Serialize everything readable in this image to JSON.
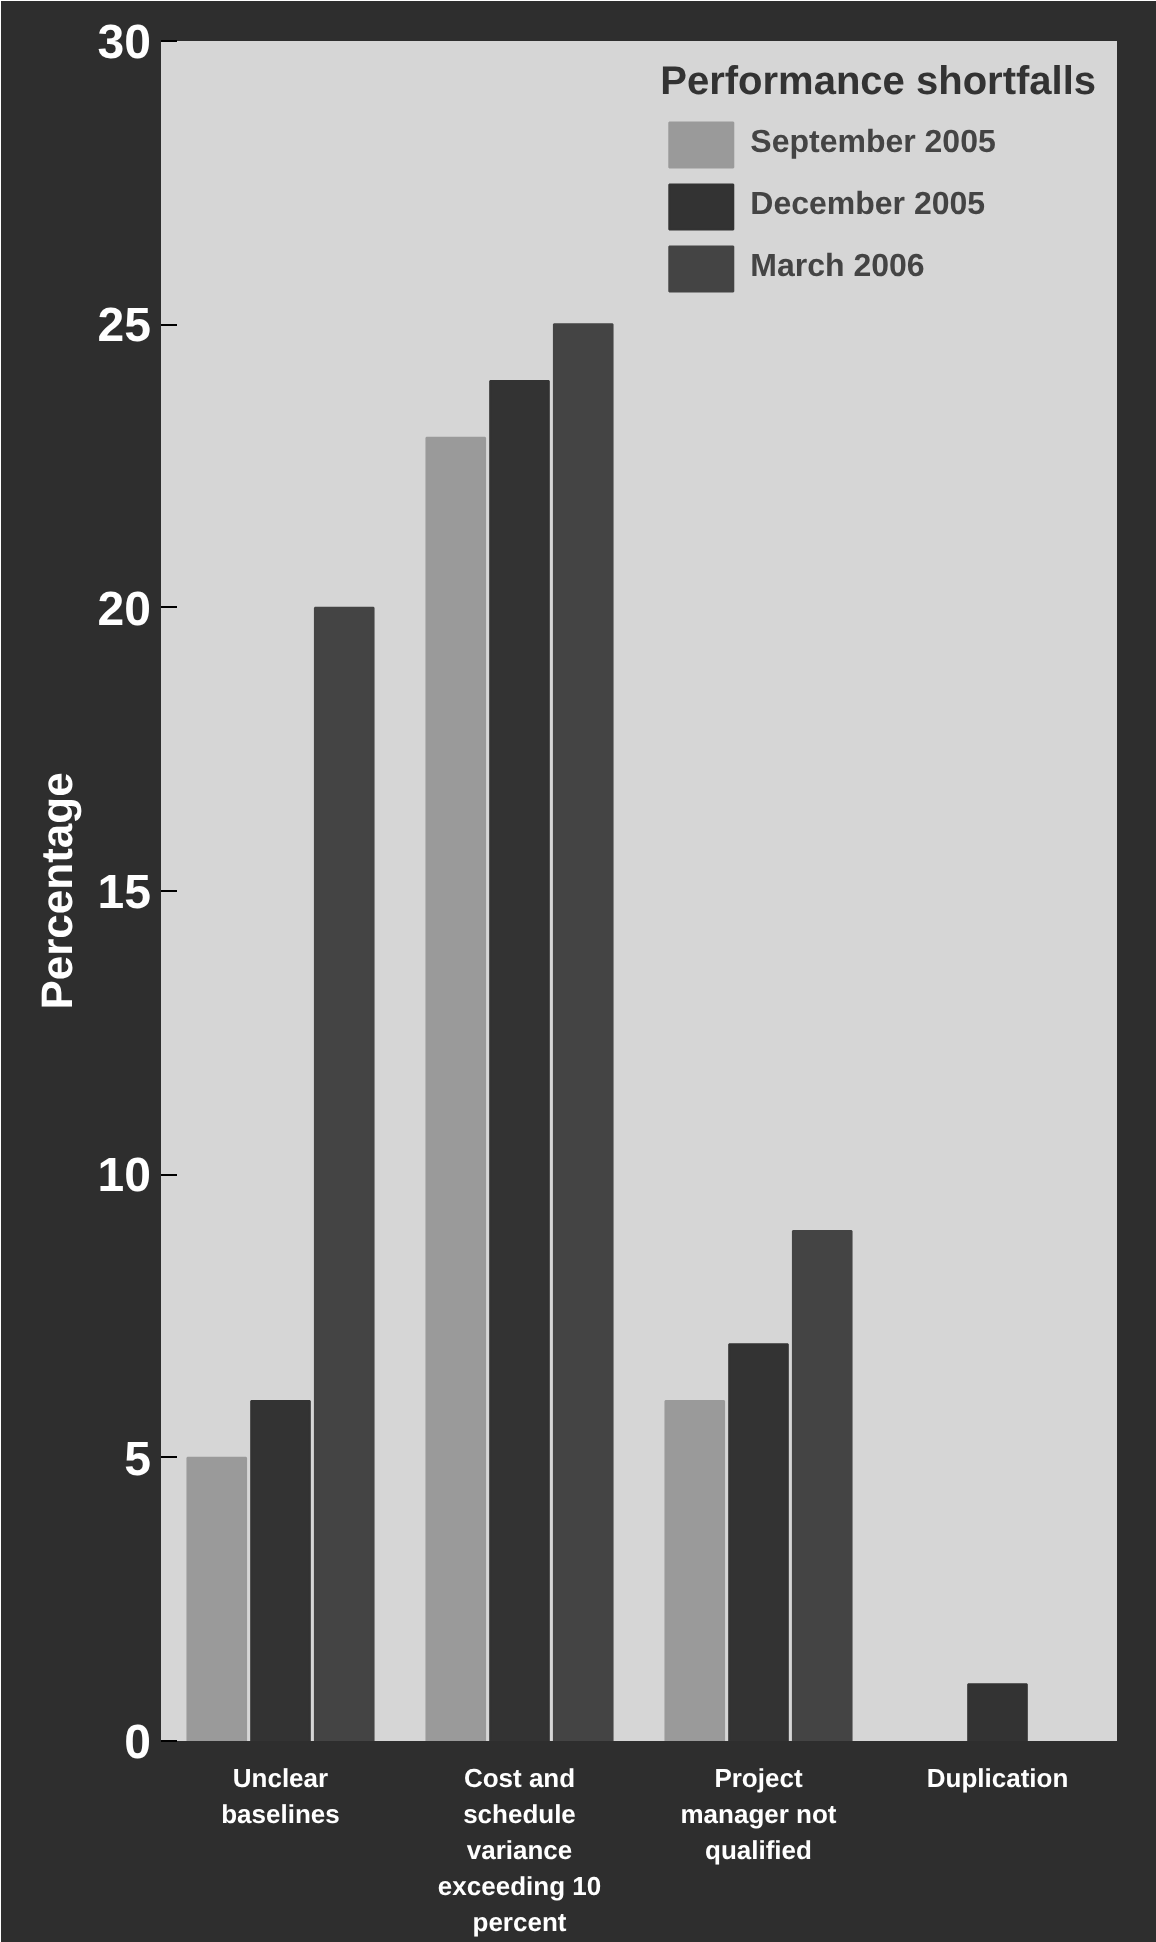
{
  "chart_data": {
    "type": "bar",
    "ylabel": "Percentage",
    "legend_title": "Performance shortfalls",
    "categories": [
      "Unclear baselines",
      "Cost and schedule variance exceeding 10 percent",
      "Project manager not qualified",
      "Duplication"
    ],
    "series": [
      {
        "name": "September 2005",
        "color": "#9a9a9a",
        "values": [
          5,
          23,
          6,
          null
        ]
      },
      {
        "name": "December 2005",
        "color": "#333333",
        "values": [
          6,
          24,
          7,
          1
        ]
      },
      {
        "name": "March 2006",
        "color": "#444444",
        "values": [
          20,
          25,
          9,
          null
        ]
      }
    ],
    "ylim": [
      0,
      30
    ],
    "yticks": [
      0,
      5,
      10,
      15,
      20,
      25,
      30
    ],
    "grid": false,
    "legend": "top right"
  }
}
